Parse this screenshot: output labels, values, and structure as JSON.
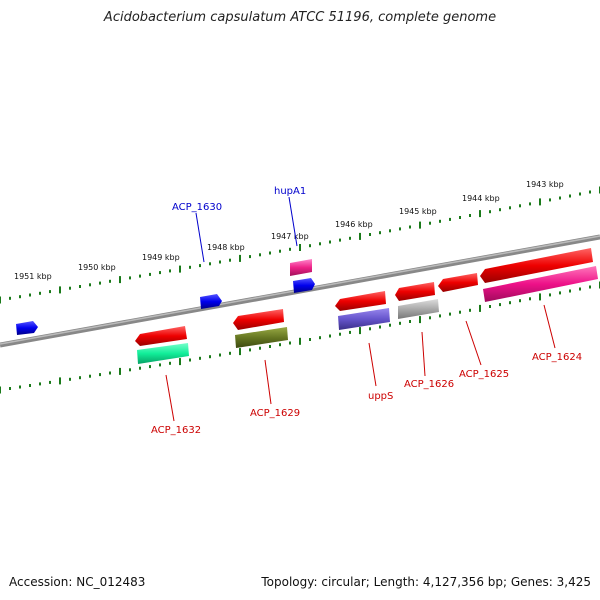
{
  "title": "Acidobacterium capsulatum ATCC 51196, complete genome",
  "footer": {
    "accession": "Accession: NC_012483",
    "topology": "Topology: circular; Length: 4,127,356 bp; Genes: 3,425"
  },
  "kbp_labels": [
    "1951 kbp",
    "1950 kbp",
    "1949 kbp",
    "1948 kbp",
    "1947 kbp",
    "1946 kbp",
    "1945 kbp",
    "1944 kbp",
    "1943 kbp"
  ],
  "colors": {
    "backbone": "#777777",
    "tick": "#1a7a1a",
    "gene_red": "#ee0000",
    "label_blue": "#0000cc",
    "label_red": "#cc0000"
  },
  "genes": [
    {
      "name": "ACP_1632",
      "label": "ACP_1632",
      "strand": "forward",
      "color": "#ee0000",
      "function_color": "#11ee99"
    },
    {
      "name": "ACP_1630",
      "label": "ACP_1630",
      "strand": "reverse",
      "color": "#0000ee"
    },
    {
      "name": "ACP_1629",
      "label": "ACP_1629",
      "strand": "forward",
      "color": "#ee0000",
      "function_color": "#667722"
    },
    {
      "name": "hupA1",
      "label": "hupA1",
      "strand": "reverse",
      "color": "#0000ee",
      "function_color": "#ee2288"
    },
    {
      "name": "uppS",
      "label": "uppS",
      "strand": "forward",
      "color": "#ee0000",
      "function_color": "#6655cc"
    },
    {
      "name": "ACP_1626",
      "label": "ACP_1626",
      "strand": "forward",
      "color": "#ee0000",
      "function_color": "#aaaaaa"
    },
    {
      "name": "ACP_1625",
      "label": "ACP_1625",
      "strand": "forward",
      "color": "#ee0000"
    },
    {
      "name": "ACP_1624",
      "label": "ACP_1624",
      "strand": "forward",
      "color": "#ee0000",
      "function_color": "#ee1188"
    }
  ]
}
